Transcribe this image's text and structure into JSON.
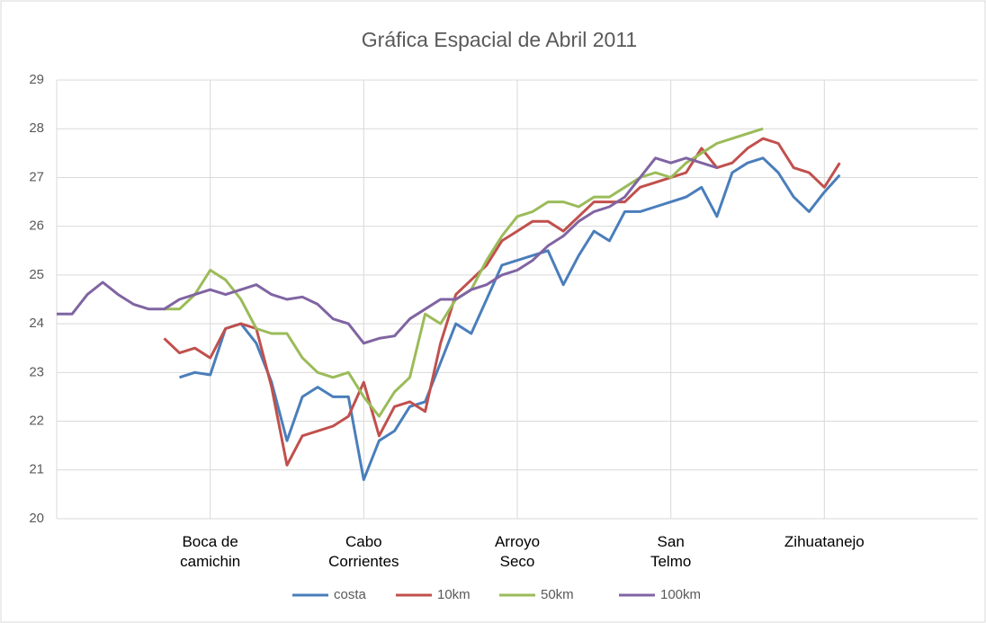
{
  "chart_data": {
    "type": "line",
    "title": "Gráfica Espacial de Abril 2011",
    "x": [
      0,
      1,
      2,
      3,
      4,
      5,
      6,
      7,
      8,
      9,
      10,
      11,
      12,
      13,
      14,
      15,
      16,
      17,
      18,
      19,
      20,
      21,
      22,
      23,
      24,
      25,
      26,
      27,
      28,
      29,
      30,
      31,
      32,
      33,
      34,
      35,
      36,
      37,
      38,
      39,
      40,
      41,
      42,
      43,
      44,
      45,
      46,
      47,
      48,
      49,
      50,
      51
    ],
    "xlim": [
      0,
      60
    ],
    "xticks": [
      {
        "value": 10,
        "label": "Boca de\ncamichin"
      },
      {
        "value": 20,
        "label": "Cabo\nCorrientes"
      },
      {
        "value": 30,
        "label": "Arroyo\nSeco"
      },
      {
        "value": 40,
        "label": "San\nTelmo"
      },
      {
        "value": 50,
        "label": "Zihuatanejo"
      }
    ],
    "ylim": [
      20,
      29
    ],
    "yticks": [
      20,
      21,
      22,
      23,
      24,
      25,
      26,
      27,
      28,
      29
    ],
    "grid": true,
    "legend": "bottom",
    "series": [
      {
        "name": "costa",
        "color": "#4a7ebb",
        "values": [
          null,
          null,
          null,
          null,
          null,
          null,
          null,
          null,
          22.9,
          23.0,
          22.95,
          23.9,
          24.0,
          23.6,
          22.8,
          21.6,
          22.5,
          22.7,
          22.5,
          22.5,
          20.8,
          21.6,
          21.8,
          22.3,
          22.4,
          23.2,
          24.0,
          23.8,
          24.5,
          25.2,
          25.3,
          25.4,
          25.5,
          24.8,
          25.4,
          25.9,
          25.7,
          26.3,
          26.3,
          26.4,
          26.5,
          26.6,
          26.8,
          26.2,
          27.1,
          27.3,
          27.4,
          27.1,
          26.6,
          26.3,
          26.7,
          27.05
        ]
      },
      {
        "name": "10km",
        "color": "#c0504d",
        "values": [
          null,
          null,
          null,
          null,
          null,
          null,
          null,
          23.7,
          23.4,
          23.5,
          23.3,
          23.9,
          24.0,
          23.9,
          22.7,
          21.1,
          21.7,
          21.8,
          21.9,
          22.1,
          22.8,
          21.7,
          22.3,
          22.4,
          22.2,
          23.6,
          24.6,
          24.9,
          25.2,
          25.7,
          25.9,
          26.1,
          26.1,
          25.9,
          26.2,
          26.5,
          26.5,
          26.5,
          26.8,
          26.9,
          27.0,
          27.1,
          27.6,
          27.2,
          27.3,
          27.6,
          27.8,
          27.7,
          27.2,
          27.1,
          26.8,
          27.3
        ]
      },
      {
        "name": "50km",
        "color": "#9bbb59",
        "values": [
          null,
          null,
          null,
          null,
          null,
          null,
          null,
          24.3,
          24.3,
          24.6,
          25.1,
          24.9,
          24.5,
          23.9,
          23.8,
          23.8,
          23.3,
          23.0,
          22.9,
          23.0,
          22.5,
          22.1,
          22.6,
          22.9,
          24.2,
          24.0,
          24.5,
          24.7,
          25.3,
          25.8,
          26.2,
          26.3,
          26.5,
          26.5,
          26.4,
          26.6,
          26.6,
          26.8,
          27.0,
          27.1,
          27.0,
          27.3,
          27.5,
          27.7,
          27.8,
          27.9,
          28.0,
          null,
          null,
          null,
          null,
          null
        ]
      },
      {
        "name": "100km",
        "color": "#8064a2",
        "values": [
          24.2,
          24.2,
          24.6,
          24.85,
          24.6,
          24.4,
          24.3,
          24.3,
          24.5,
          24.6,
          24.7,
          24.6,
          24.7,
          24.8,
          24.6,
          24.5,
          24.55,
          24.4,
          24.1,
          24.0,
          23.6,
          23.7,
          23.75,
          24.1,
          24.3,
          24.5,
          24.5,
          24.7,
          24.8,
          25.0,
          25.1,
          25.3,
          25.6,
          25.8,
          26.1,
          26.3,
          26.4,
          26.6,
          27.0,
          27.4,
          27.3,
          27.4,
          27.3,
          27.2,
          null,
          null,
          null,
          null,
          null,
          null,
          null,
          null
        ]
      }
    ]
  }
}
